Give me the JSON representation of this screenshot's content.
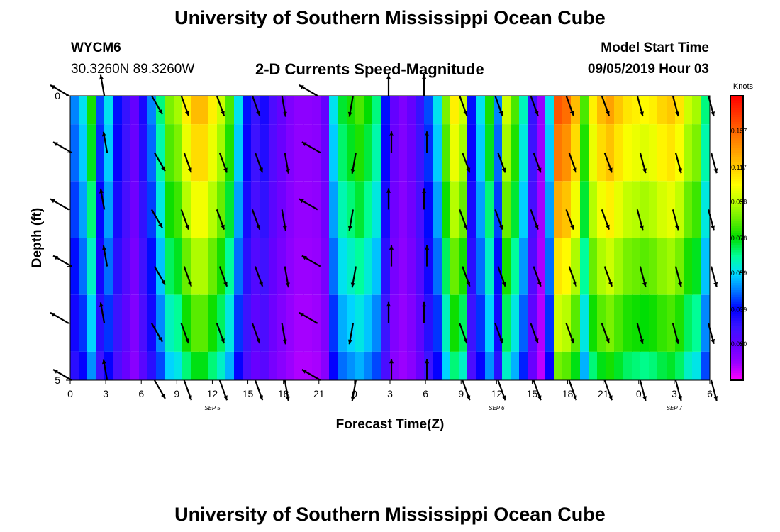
{
  "header": {
    "title": "University of Southern Mississippi Ocean Cube",
    "station_id": "WYCM6",
    "station_coords": "30.3260N 89.3260W",
    "chart_title": "2-D Currents Speed-Magnitude",
    "model_label": "Model Start Time",
    "model_time": "09/05/2019 Hour 03"
  },
  "footer": {
    "title": "University of Southern Mississippi Ocean Cube"
  },
  "colors": {
    "colormap": [
      "#ff00ff",
      "#9900ff",
      "#6600ff",
      "#3a14ff",
      "#0000ff",
      "#0077ff",
      "#00ddff",
      "#00ff99",
      "#00dd00",
      "#66ee00",
      "#bbff00",
      "#ffff00",
      "#ffcc00",
      "#ff9900",
      "#ff6600",
      "#ff3300",
      "#ff0000"
    ],
    "arrow": "#000000"
  },
  "chart_data": {
    "type": "heatmap",
    "xlabel": "Forecast Time(Z)",
    "ylabel": "Depth (ft)",
    "x_tick_labels": [
      "0",
      "3",
      "6",
      "9",
      "12",
      "15",
      "18",
      "21",
      "0",
      "3",
      "6",
      "9",
      "12",
      "15",
      "18",
      "21",
      "0",
      "3",
      "6"
    ],
    "day_labels": [
      {
        "text": "SEP 5",
        "hour": 12
      },
      {
        "text": "SEP 6",
        "hour": 36
      },
      {
        "text": "SEP 7",
        "hour": 51
      }
    ],
    "xlim": [
      0,
      54
    ],
    "ylim": [
      0,
      5
    ],
    "y_tick_labels": [
      "0",
      "5"
    ],
    "y_minor_ticks": [
      1,
      2,
      3,
      4
    ],
    "colorbar": {
      "label": "Knots",
      "range": [
        0.0,
        0.156
      ],
      "tick_labels": [
        "0.137",
        "0.117",
        "0.098",
        "0.078",
        "0.059",
        "0.039",
        "0.020"
      ],
      "tick_values": [
        0.137,
        0.117,
        0.098,
        0.078,
        0.059,
        0.039,
        0.02
      ]
    },
    "surface_speed": [
      0.05,
      0.06,
      0.08,
      0.045,
      0.06,
      0.04,
      0.03,
      0.02,
      0.035,
      0.05,
      0.07,
      0.09,
      0.095,
      0.11,
      0.12,
      0.12,
      0.11,
      0.1,
      0.085,
      0.06,
      0.04,
      0.03,
      0.035,
      0.025,
      0.02,
      0.015,
      0.012,
      0.012,
      0.013,
      0.02,
      0.06,
      0.075,
      0.08,
      0.085,
      0.078,
      0.07,
      0.04,
      0.02,
      0.015,
      0.02,
      0.03,
      0.045,
      0.06,
      0.09,
      0.11,
      0.1,
      0.04,
      0.06,
      0.08,
      0.05,
      0.1,
      0.085,
      0.065,
      0.03,
      0.01,
      0.06,
      0.14,
      0.135,
      0.12,
      0.085,
      0.11,
      0.12,
      0.125,
      0.118,
      0.112,
      0.11,
      0.108,
      0.11,
      0.115,
      0.118,
      0.112,
      0.1,
      0.095,
      0.07
    ],
    "depth_factor": [
      1.0,
      0.95,
      0.88,
      0.8,
      0.72,
      0.64
    ],
    "arrow_columns": {
      "hours": [
        0,
        3,
        7,
        9.5,
        12.5,
        15.5,
        18,
        21,
        24,
        27,
        30,
        33,
        36,
        39,
        42,
        45,
        48,
        51,
        54
      ],
      "offset_angles_deg": [
        -60,
        -10,
        150,
        160,
        160,
        160,
        170,
        -60,
        -170,
        0,
        0,
        160,
        160,
        160,
        160,
        160,
        165,
        165,
        165
      ]
    },
    "arrow_rows": [
      0,
      1,
      2,
      3,
      4,
      5
    ]
  }
}
